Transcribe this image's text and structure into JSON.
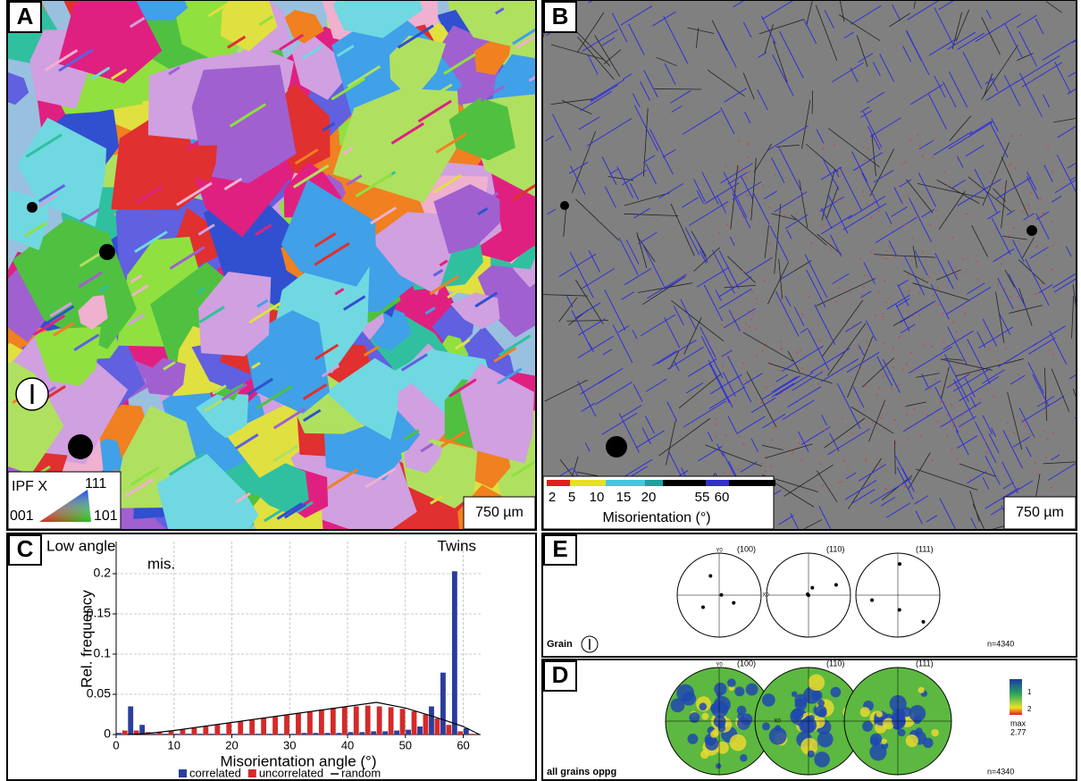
{
  "panel_A": {
    "label": "A",
    "ipf_title": "IPF X",
    "corner_111": "111",
    "corner_001": "001",
    "corner_101": "101",
    "scale": "750 µm"
  },
  "panel_B": {
    "label": "B",
    "colorbar_ticks": [
      "2",
      "5",
      "10",
      "15",
      "20",
      "55",
      "60"
    ],
    "colorbar_title": "Misorientation (°)",
    "scale": "750 µm"
  },
  "panel_E": {
    "label": "E",
    "axis_y": "Y0",
    "axis_x": "X0",
    "planes": [
      "(100)",
      "(110)",
      "(111)"
    ],
    "caption": "Grain",
    "count": "n=4340"
  },
  "panel_D": {
    "label": "D",
    "axis_y": "Y0",
    "axis_x": "X0",
    "planes": [
      "(100)",
      "(110)",
      "(111)"
    ],
    "caption": "all grains oppg",
    "count": "n=4340",
    "legend_ticks": [
      "1",
      "2"
    ],
    "max_label": "max",
    "max_value": "2.77"
  },
  "chart_data": {
    "type": "bar",
    "panel_label": "C",
    "x_label": "Misorientation angle (°)",
    "y_label": "Rel. frequency",
    "annotations": [
      "Low angle",
      "mis.",
      "Twins"
    ],
    "x": [
      1,
      3,
      5,
      7,
      9,
      11,
      13,
      15,
      17,
      19,
      21,
      23,
      25,
      27,
      29,
      31,
      33,
      35,
      37,
      39,
      41,
      43,
      45,
      47,
      49,
      51,
      53,
      55,
      57,
      59,
      61
    ],
    "series": [
      {
        "name": "correlated",
        "color": "#2b3d9c",
        "values": [
          0.002,
          0.035,
          0.012,
          0.001,
          0.001,
          0.001,
          0.001,
          0.001,
          0.001,
          0.001,
          0.001,
          0.001,
          0.001,
          0.001,
          0.001,
          0.001,
          0.002,
          0.002,
          0.002,
          0.002,
          0.003,
          0.003,
          0.004,
          0.004,
          0.005,
          0.006,
          0.01,
          0.035,
          0.077,
          0.203,
          0.008
        ]
      },
      {
        "name": "uncorrelated",
        "color": "#d42a2a",
        "values": [
          0.005,
          0.005,
          0.003,
          0.003,
          0.004,
          0.006,
          0.008,
          0.01,
          0.012,
          0.014,
          0.016,
          0.018,
          0.02,
          0.022,
          0.024,
          0.026,
          0.028,
          0.031,
          0.033,
          0.034,
          0.035,
          0.036,
          0.035,
          0.034,
          0.032,
          0.029,
          0.025,
          0.02,
          0.012,
          0.004,
          0.001
        ]
      },
      {
        "name": "random",
        "type": "line",
        "color": "#000000",
        "x": [
          2,
          5,
          10,
          20,
          30,
          40,
          45,
          50,
          55,
          60,
          62.8
        ],
        "values": [
          0,
          0.001,
          0.005,
          0.015,
          0.025,
          0.035,
          0.04,
          0.033,
          0.022,
          0.01,
          0
        ]
      }
    ],
    "xlim": [
      0,
      63
    ],
    "ylim": [
      0,
      0.24
    ],
    "xticks": [
      0,
      10,
      20,
      30,
      40,
      50,
      60
    ],
    "yticks": [
      0,
      0.05,
      0.1,
      0.15,
      0.2
    ],
    "grid": true,
    "legend": "bottom"
  }
}
